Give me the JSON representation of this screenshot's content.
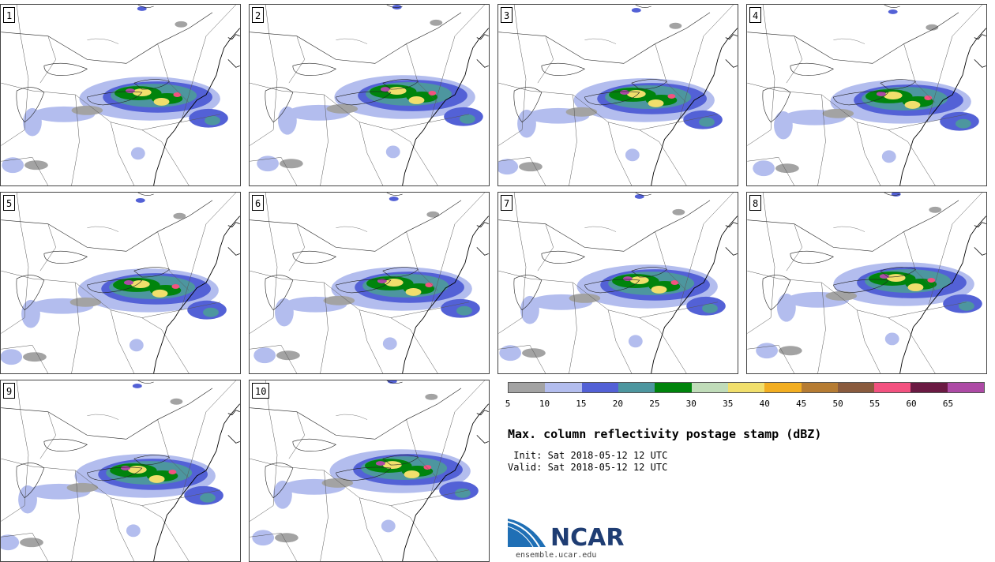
{
  "panels": [
    {
      "label": "1"
    },
    {
      "label": "2"
    },
    {
      "label": "3"
    },
    {
      "label": "4"
    },
    {
      "label": "5"
    },
    {
      "label": "6"
    },
    {
      "label": "7"
    },
    {
      "label": "8"
    },
    {
      "label": "9"
    },
    {
      "label": "10"
    }
  ],
  "colorbar": {
    "colors": [
      "#a3a3a3",
      "#b3bdee",
      "#5361d6",
      "#4d969f",
      "#00840c",
      "#c0dcb9",
      "#f1df6c",
      "#f2ae22",
      "#b67c33",
      "#8a5b3e",
      "#f35280",
      "#6b1a43",
      "#ad4aa5"
    ],
    "ticks": [
      "5",
      "10",
      "15",
      "20",
      "25",
      "30",
      "35",
      "40",
      "45",
      "50",
      "55",
      "60",
      "65"
    ]
  },
  "title": "Max. column reflectivity postage stamp (dBZ)",
  "init": " Init: Sat 2018-05-12 12 UTC",
  "valid": "Valid: Sat 2018-05-12 12 UTC",
  "logo": {
    "text": "NCAR",
    "url": "ensemble.ucar.edu",
    "colors": {
      "blue": "#1f6fb5",
      "dark": "#1f3d73"
    }
  }
}
